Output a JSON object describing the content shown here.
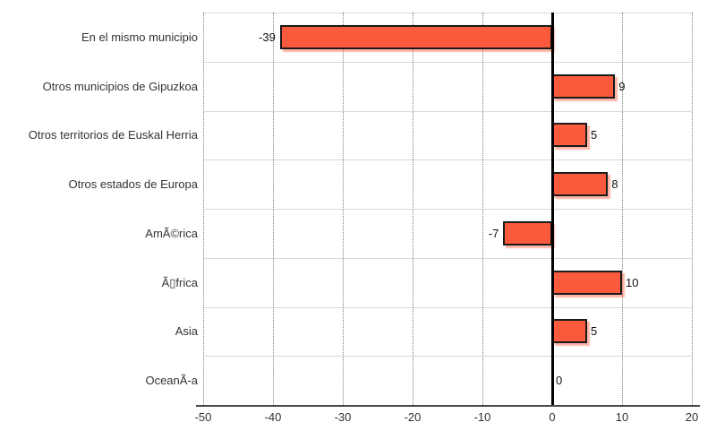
{
  "chart_data": {
    "type": "bar",
    "orientation": "horizontal",
    "title": "",
    "xlabel": "",
    "ylabel": "",
    "categories": [
      "En el mismo municipio",
      "Otros municipios de Gipuzkoa",
      "Otros territorios de Euskal Herria",
      "Otros estados de Europa",
      "AmÃ©rica",
      "Ã▯frica",
      "Asia",
      "OceanÃ-a"
    ],
    "values": [
      -39,
      9,
      5,
      8,
      -7,
      10,
      5,
      0
    ],
    "value_labels": [
      "-39",
      "9",
      "5",
      "8",
      "-7",
      "10",
      "5",
      "0"
    ],
    "xlim": [
      -50,
      20
    ],
    "x_ticks": [
      -50,
      -40,
      -30,
      -20,
      -10,
      0,
      10,
      20
    ],
    "x_tick_labels": [
      "-50",
      "-40",
      "-30",
      "-20",
      "-10",
      "0",
      "10",
      "20"
    ],
    "grid": "horizontal-separators-and-dotted-vertical",
    "legend": "none",
    "colors": {
      "bar_fill": "#FB5A3C",
      "bar_border": "#1A1A1A",
      "bar_shadow": "rgba(251,90,60,0.45)",
      "zero_line": "#000000",
      "axis_line": "#4A4A4A",
      "row_separator": "#D9D9D9",
      "dotted_grid": "#7D7D7D",
      "category_text": "#333333",
      "value_text": "#111111",
      "background": "#FFFFFF"
    }
  }
}
